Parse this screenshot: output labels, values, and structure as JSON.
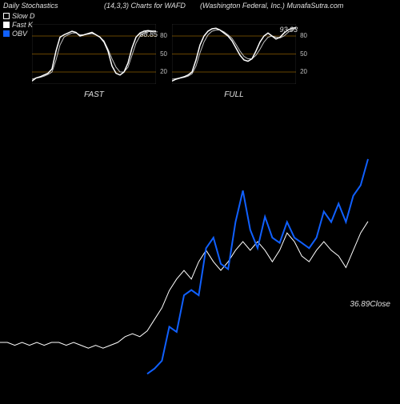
{
  "header": {
    "title": "Daily Stochastics",
    "params": "(14,3,3) Charts for WAFD",
    "company": "(Washington Federal, Inc.) MunafaSutra.com"
  },
  "legend": {
    "slow_d": {
      "label": "Slow D",
      "color": "#ffffff",
      "fill": false
    },
    "fast_k": {
      "label": "Fast K",
      "color": "#ffffff",
      "fill": true
    },
    "obv": {
      "label": "OBV",
      "color": "#1060ff",
      "fill": true
    }
  },
  "mini_fast": {
    "label": "FAST",
    "value_text": "88.85",
    "grid_color": "#cc8800",
    "grid_levels": [
      20,
      50,
      80
    ],
    "ylim": [
      0,
      100
    ],
    "lines": {
      "k": {
        "color": "#ffffff",
        "width": 1.5,
        "points": [
          5,
          10,
          12,
          15,
          18,
          25,
          55,
          78,
          82,
          85,
          88,
          86,
          80,
          82,
          84,
          86,
          82,
          78,
          70,
          55,
          30,
          18,
          15,
          20,
          35,
          60,
          78,
          85,
          88,
          89,
          88,
          88
        ]
      },
      "d": {
        "color": "#c0c0c0",
        "width": 1,
        "points": [
          8,
          10,
          11,
          13,
          16,
          20,
          40,
          65,
          78,
          82,
          85,
          85,
          82,
          82,
          83,
          84,
          82,
          78,
          72,
          58,
          42,
          28,
          20,
          20,
          28,
          48,
          68,
          80,
          85,
          87,
          88,
          88
        ]
      }
    }
  },
  "mini_full": {
    "label": "FULL",
    "value_text": "93.93",
    "grid_color": "#cc8800",
    "grid_levels": [
      20,
      50,
      80
    ],
    "ylim": [
      0,
      100
    ],
    "lines": {
      "k": {
        "color": "#ffffff",
        "width": 1.5,
        "points": [
          5,
          8,
          10,
          12,
          15,
          20,
          40,
          65,
          80,
          88,
          92,
          93,
          90,
          85,
          80,
          72,
          60,
          48,
          40,
          38,
          42,
          55,
          70,
          80,
          85,
          80,
          75,
          78,
          85,
          90,
          93,
          94
        ]
      },
      "d": {
        "color": "#c0c0c0",
        "width": 1,
        "points": [
          8,
          9,
          10,
          11,
          13,
          17,
          30,
          52,
          70,
          82,
          88,
          90,
          90,
          87,
          82,
          76,
          66,
          55,
          46,
          42,
          42,
          48,
          58,
          70,
          78,
          80,
          78,
          77,
          80,
          86,
          90,
          93
        ]
      }
    }
  },
  "main_chart": {
    "close_text": "36.89Close",
    "background": "#000000",
    "price_line": {
      "color": "#ffffff",
      "width": 1,
      "points": [
        30,
        30,
        29,
        30,
        29,
        30,
        29,
        30,
        30,
        29,
        30,
        29,
        28,
        29,
        28,
        29,
        30,
        32,
        33,
        32,
        34,
        38,
        42,
        48,
        52,
        55,
        52,
        58,
        62,
        58,
        55,
        58,
        62,
        65,
        62,
        65,
        62,
        58,
        62,
        68,
        65,
        60,
        58,
        62,
        65,
        62,
        60,
        56,
        62,
        68,
        72
      ]
    },
    "obv_line": {
      "color": "#1060ff",
      "width": 2,
      "points": [
        null,
        null,
        null,
        null,
        null,
        null,
        null,
        null,
        null,
        null,
        null,
        null,
        null,
        null,
        null,
        null,
        null,
        null,
        null,
        null,
        0,
        2,
        5,
        18,
        16,
        30,
        32,
        30,
        48,
        52,
        42,
        40,
        58,
        70,
        55,
        48,
        60,
        52,
        50,
        58,
        52,
        50,
        48,
        52,
        62,
        58,
        65,
        58,
        68,
        72,
        82
      ]
    }
  }
}
